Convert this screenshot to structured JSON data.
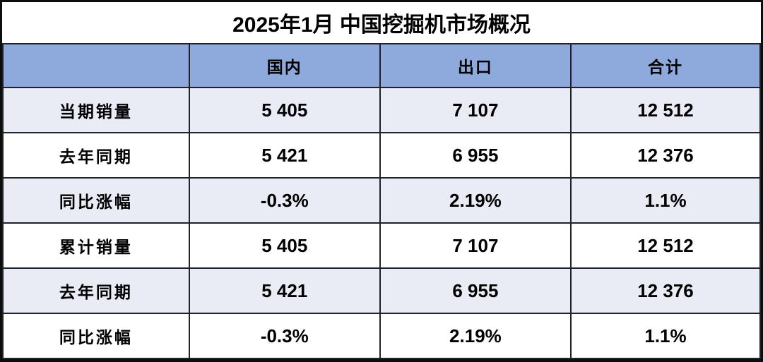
{
  "title": "2025年1月 中国挖掘机市场概况",
  "colors": {
    "header_bg": "#8EA9DB",
    "row_alt_bg": "#E9EBF5",
    "row_bg": "#FFFFFF",
    "grid_line": "#1F2329",
    "outer_border": "#0D0D0D",
    "text": "#000000"
  },
  "table": {
    "columns": [
      "",
      "国内",
      "出口",
      "合计"
    ],
    "rows": [
      {
        "label": "当期销量",
        "values": [
          "5 405",
          "7 107",
          "12 512"
        ]
      },
      {
        "label": "去年同期",
        "values": [
          "5 421",
          "6 955",
          "12 376"
        ]
      },
      {
        "label": "同比涨幅",
        "values": [
          "-0.3%",
          "2.19%",
          "1.1%"
        ]
      },
      {
        "label": "累计销量",
        "values": [
          "5 405",
          "7 107",
          "12 512"
        ]
      },
      {
        "label": "去年同期",
        "values": [
          "5 421",
          "6 955",
          "12 376"
        ]
      },
      {
        "label": "同比涨幅",
        "values": [
          "-0.3%",
          "2.19%",
          "1.1%"
        ]
      }
    ]
  },
  "chart_data": {
    "type": "table",
    "title": "2025年1月 中国挖掘机市场概况",
    "columns": [
      "",
      "国内",
      "出口",
      "合计"
    ],
    "rows": [
      {
        "label": "当期销量",
        "国内": 5405,
        "出口": 7107,
        "合计": 12512
      },
      {
        "label": "去年同期",
        "国内": 5421,
        "出口": 6955,
        "合计": 12376
      },
      {
        "label": "同比涨幅",
        "国内": "-0.3%",
        "出口": "2.19%",
        "合计": "1.1%"
      },
      {
        "label": "累计销量",
        "国内": 5405,
        "出口": 7107,
        "合计": 12512
      },
      {
        "label": "去年同期",
        "国内": 5421,
        "出口": 6955,
        "合计": 12376
      },
      {
        "label": "同比涨幅",
        "国内": "-0.3%",
        "出口": "2.19%",
        "合计": "1.1%"
      }
    ]
  }
}
